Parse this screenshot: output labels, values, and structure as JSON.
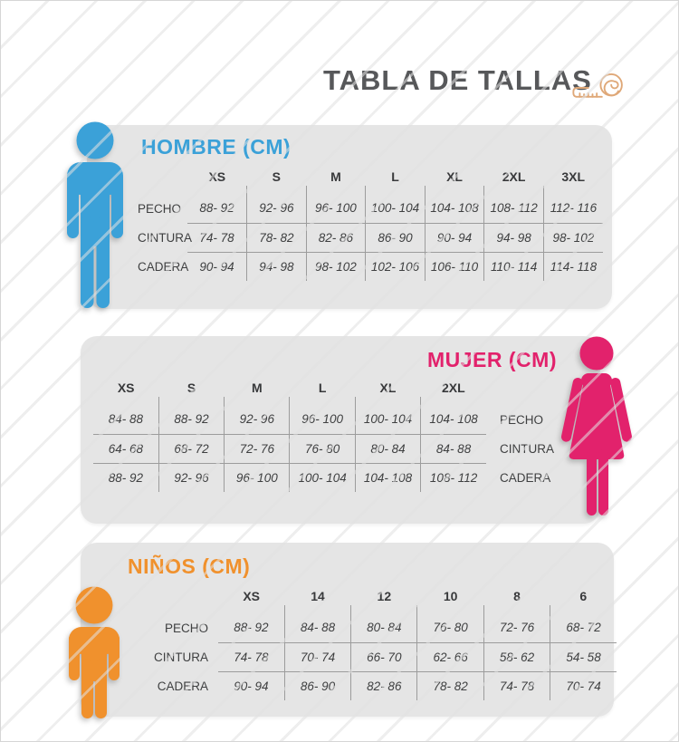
{
  "header": {
    "title": "TABLA DE TALLAS",
    "tape_icon": "measuring-tape-icon"
  },
  "colors": {
    "men_accent": "#3BA1D8",
    "women_accent": "#E2226C",
    "kids_accent": "#F0912D",
    "panel_bg": "#E5E5E5",
    "title_text": "#57585A",
    "grid_line": "#9C9C9C",
    "tape_icon": "#DFA878"
  },
  "chart_data": [
    {
      "type": "table",
      "id": "hombre",
      "title": "HOMBRE (CM)",
      "figure": "man-icon",
      "labels_side": "left",
      "columns": [
        "XS",
        "S",
        "M",
        "L",
        "XL",
        "2XL",
        "3XL"
      ],
      "row_labels": [
        "PECHO",
        "CINTURA",
        "CADERA"
      ],
      "rows": [
        [
          "88- 92",
          "92- 96",
          "96- 100",
          "100- 104",
          "104- 108",
          "108- 112",
          "112- 116"
        ],
        [
          "74- 78",
          "78- 82",
          "82- 86",
          "86- 90",
          "90- 94",
          "94- 98",
          "98- 102"
        ],
        [
          "90- 94",
          "94- 98",
          "98- 102",
          "102- 106",
          "106- 110",
          "110- 114",
          "114- 118"
        ]
      ]
    },
    {
      "type": "table",
      "id": "mujer",
      "title": "MUJER (CM)",
      "figure": "woman-icon",
      "labels_side": "right",
      "columns": [
        "XS",
        "S",
        "M",
        "L",
        "XL",
        "2XL"
      ],
      "row_labels": [
        "PECHO",
        "CINTURA",
        "CADERA"
      ],
      "rows": [
        [
          "84- 88",
          "88- 92",
          "92- 96",
          "96- 100",
          "100- 104",
          "104- 108"
        ],
        [
          "64- 68",
          "68- 72",
          "72- 76",
          "76- 80",
          "80- 84",
          "84- 88"
        ],
        [
          "88- 92",
          "92- 96",
          "96- 100",
          "100- 104",
          "104- 108",
          "108- 112"
        ]
      ]
    },
    {
      "type": "table",
      "id": "ninos",
      "title": "NIÑOS (CM)",
      "figure": "child-icon",
      "labels_side": "left",
      "columns": [
        "XS",
        "14",
        "12",
        "10",
        "8",
        "6"
      ],
      "row_labels": [
        "PECHO",
        "CINTURA",
        "CADERA"
      ],
      "rows": [
        [
          "88- 92",
          "84- 88",
          "80- 84",
          "76- 80",
          "72- 76",
          "68- 72"
        ],
        [
          "74- 78",
          "70- 74",
          "66- 70",
          "62- 66",
          "58- 62",
          "54- 58"
        ],
        [
          "90- 94",
          "86- 90",
          "82- 86",
          "78- 82",
          "74- 78",
          "70- 74"
        ]
      ]
    }
  ]
}
